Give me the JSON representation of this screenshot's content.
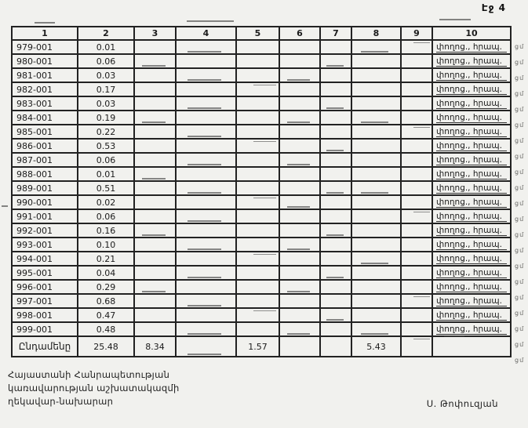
{
  "page": {
    "label": "Էջ 4"
  },
  "table": {
    "headers": [
      "1",
      "2",
      "3",
      "4",
      "5",
      "6",
      "7",
      "8",
      "9",
      "10"
    ],
    "rows": [
      {
        "code": "979-001",
        "value": "0.01",
        "note": "փողոց., հրապ.",
        "margin_mark": "ցմ"
      },
      {
        "code": "980-001",
        "value": "0.06",
        "note": "փողոց., հրապ.",
        "margin_mark": "ցմ"
      },
      {
        "code": "981-001",
        "value": "0.03",
        "note": "փողոց., հրապ.",
        "margin_mark": "ցմ"
      },
      {
        "code": "982-001",
        "value": "0.17",
        "note": "փողոց., հրապ.",
        "margin_mark": "ցմ"
      },
      {
        "code": "983-001",
        "value": "0.03",
        "note": "փողոց., հրապ.",
        "margin_mark": "ցմ"
      },
      {
        "code": "984-001",
        "value": "0.19",
        "note": "փողոց., հրապ.",
        "margin_mark": "ցմ"
      },
      {
        "code": "985-001",
        "value": "0.22",
        "note": "փողոց., հրապ.",
        "margin_mark": "ցմ"
      },
      {
        "code": "986-001",
        "value": "0.53",
        "note": "փողոց., հրապ.",
        "margin_mark": "ցմ"
      },
      {
        "code": "987-001",
        "value": "0.06",
        "note": "փողոց., հրապ.",
        "margin_mark": "ցմ"
      },
      {
        "code": "988-001",
        "value": "0.01",
        "note": "փողոց., հրապ.",
        "margin_mark": "ցմ"
      },
      {
        "code": "989-001",
        "value": "0.51",
        "note": "փողոց., հրապ.",
        "margin_mark": "ցմ"
      },
      {
        "code": "990-001",
        "value": "0.02",
        "note": "փողոց., հրապ.",
        "margin_mark": "ցմ"
      },
      {
        "code": "991-001",
        "value": "0.06",
        "note": "փողոց., հրապ.",
        "margin_mark": "ցմ"
      },
      {
        "code": "992-001",
        "value": "0.16",
        "note": "փողոց., հրապ.",
        "margin_mark": "ցմ"
      },
      {
        "code": "993-001",
        "value": "0.10",
        "note": "փողոց., հրապ.",
        "margin_mark": "ցմ"
      },
      {
        "code": "994-001",
        "value": "0.21",
        "note": "փողոց., հրապ.",
        "margin_mark": "ցմ"
      },
      {
        "code": "995-001",
        "value": "0.04",
        "note": "փողոց., հրապ.",
        "margin_mark": "ցմ"
      },
      {
        "code": "996-001",
        "value": "0.29",
        "note": "փողոց., հրապ.",
        "margin_mark": "ցմ"
      },
      {
        "code": "997-001",
        "value": "0.68",
        "note": "փողոց., հրապ.",
        "margin_mark": "ցմ"
      },
      {
        "code": "998-001",
        "value": "0.47",
        "note": "փողոց., հրապ.",
        "margin_mark": "ցմ"
      },
      {
        "code": "999-001",
        "value": "0.48",
        "note": "փողոց., հրապ.",
        "margin_mark": "ցմ"
      }
    ],
    "total": {
      "label": "Ընդամենը",
      "col_2": "25.48",
      "col_3": "8.34",
      "col_5": "1.57",
      "col_8": "5.43"
    }
  },
  "footer": {
    "lines": [
      "Հայաստանի Հանրապետության",
      "կառավարության աշխատակազմի",
      "ղեկավար-նախարար"
    ],
    "signature": "Ս. Թոփուզյան"
  }
}
